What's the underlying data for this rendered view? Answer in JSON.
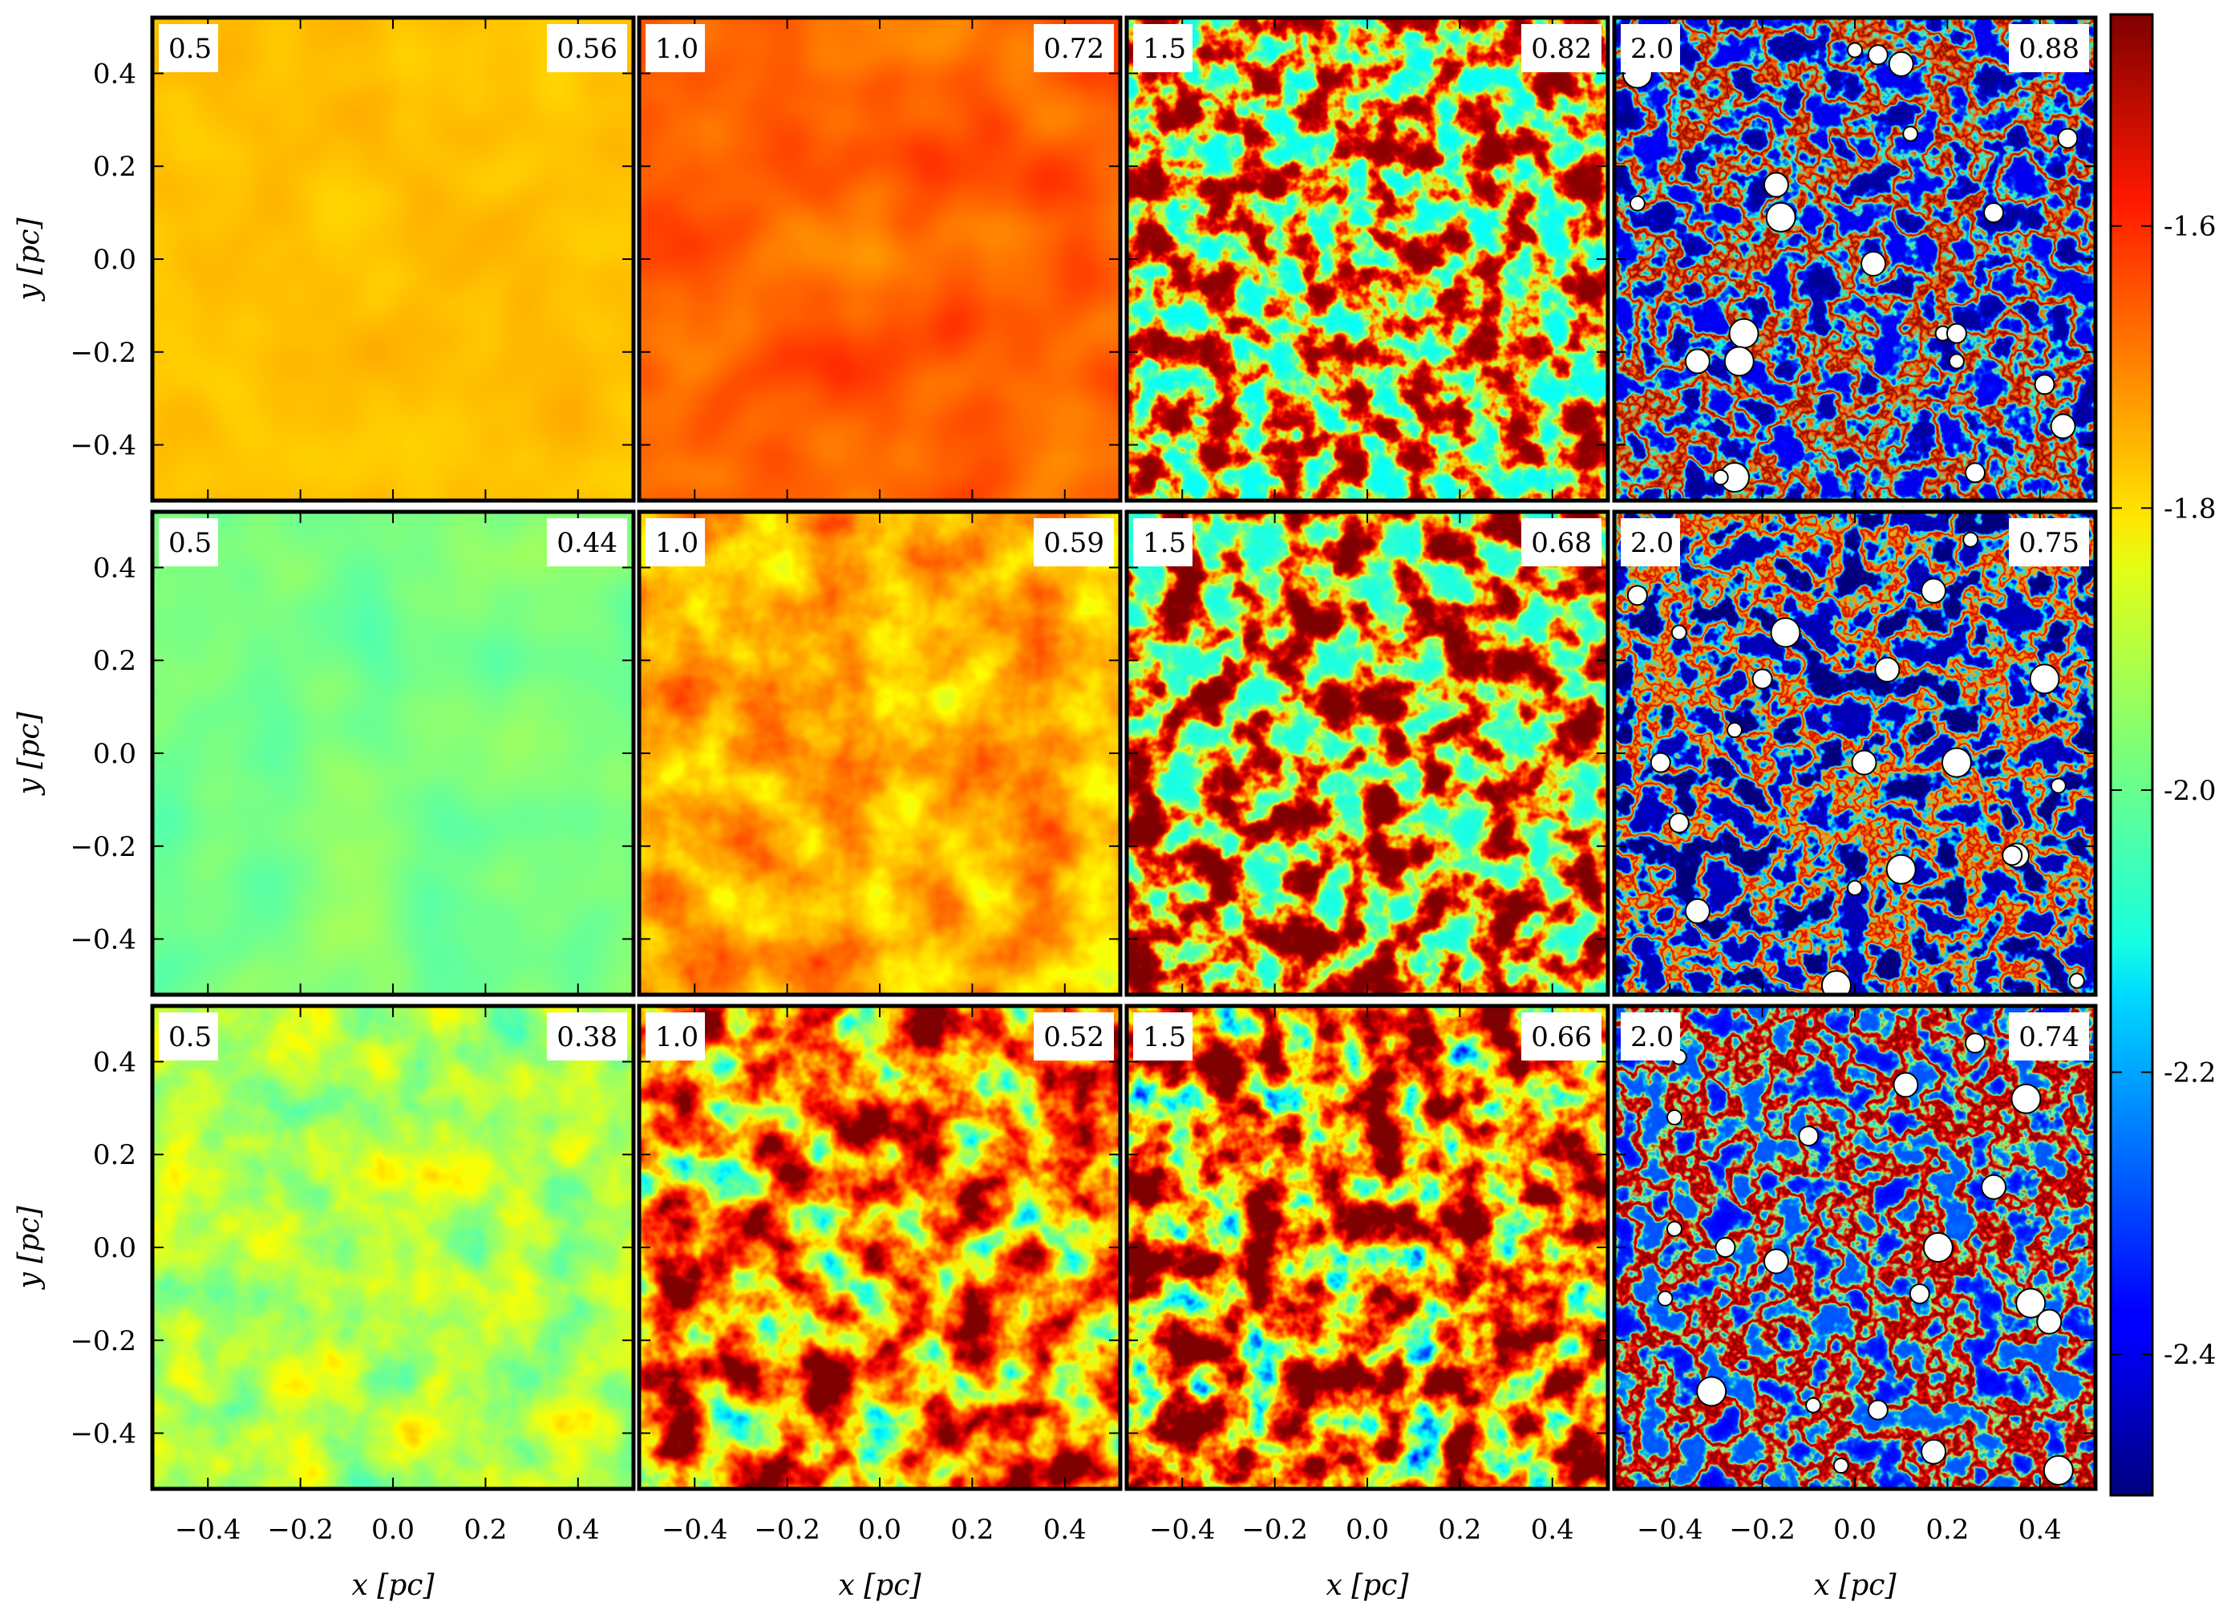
{
  "chart_data": {
    "type": "heatmap",
    "layout": {
      "rows": 3,
      "columns": 4
    },
    "xlabel": "x [pc]",
    "ylabel": "y [pc]",
    "xlim": [
      -0.52,
      0.52
    ],
    "ylim": [
      -0.52,
      0.52
    ],
    "xticks": [
      "−0.4",
      "−0.2",
      "0.0",
      "0.2",
      "0.4"
    ],
    "yticks": [
      "0.4",
      "0.2",
      "0.0",
      "−0.2",
      "−0.4"
    ],
    "xtick_values": [
      -0.4,
      -0.2,
      0.0,
      0.2,
      0.4
    ],
    "ytick_values": [
      0.4,
      0.2,
      0.0,
      -0.2,
      -0.4
    ],
    "colorbar": {
      "ticks": [
        "-1.6",
        "-1.8",
        "-2.0",
        "-2.2",
        "-2.4"
      ],
      "tick_values": [
        -1.6,
        -1.8,
        -2.0,
        -2.2,
        -2.4
      ],
      "range": [
        -2.5,
        -1.45
      ],
      "colormap": "jet"
    },
    "panels": [
      {
        "row": 0,
        "col": 0,
        "label": "0.5",
        "value": "0.56",
        "mean": -1.78,
        "spread": 0.01,
        "feature": 2,
        "structure": "uniform"
      },
      {
        "row": 0,
        "col": 1,
        "label": "1.0",
        "value": "0.72",
        "mean": -1.68,
        "spread": 0.02,
        "feature": 2,
        "structure": "uniform"
      },
      {
        "row": 0,
        "col": 2,
        "label": "1.5",
        "value": "0.82",
        "mean": -1.78,
        "spread": 0.1,
        "feature": 6,
        "structure": "cells"
      },
      {
        "row": 0,
        "col": 3,
        "label": "2.0",
        "value": "0.88",
        "mean": -2.28,
        "spread": 0.12,
        "feature": 6,
        "structure": "filaments"
      },
      {
        "row": 1,
        "col": 0,
        "label": "0.5",
        "value": "0.44",
        "mean": -1.98,
        "spread": 0.015,
        "feature": 2,
        "structure": "uniform"
      },
      {
        "row": 1,
        "col": 1,
        "label": "1.0",
        "value": "0.59",
        "mean": -1.76,
        "spread": 0.04,
        "feature": 3,
        "structure": "noise"
      },
      {
        "row": 1,
        "col": 2,
        "label": "1.5",
        "value": "0.68",
        "mean": -1.76,
        "spread": 0.1,
        "feature": 5,
        "structure": "cells"
      },
      {
        "row": 1,
        "col": 3,
        "label": "2.0",
        "value": "0.75",
        "mean": -2.34,
        "spread": 0.12,
        "feature": 6,
        "structure": "filaments"
      },
      {
        "row": 2,
        "col": 0,
        "label": "0.5",
        "value": "0.38",
        "mean": -1.92,
        "spread": 0.04,
        "feature": 3,
        "structure": "noise"
      },
      {
        "row": 2,
        "col": 1,
        "label": "1.0",
        "value": "0.52",
        "mean": -1.72,
        "spread": 0.16,
        "feature": 4,
        "structure": "noise"
      },
      {
        "row": 2,
        "col": 2,
        "label": "1.5",
        "value": "0.66",
        "mean": -1.7,
        "spread": 0.2,
        "feature": 5,
        "structure": "noise"
      },
      {
        "row": 2,
        "col": 3,
        "label": "2.0",
        "value": "0.74",
        "mean": -2.15,
        "spread": 0.14,
        "feature": 6,
        "structure": "filaments"
      }
    ],
    "sinks": [
      {
        "panel": 3,
        "points": [
          [
            0.0,
            0.45
          ],
          [
            0.05,
            0.44
          ],
          [
            0.1,
            0.42
          ],
          [
            -0.47,
            0.4
          ],
          [
            0.12,
            0.27
          ],
          [
            0.46,
            0.26
          ],
          [
            -0.17,
            0.16
          ],
          [
            -0.16,
            0.09
          ],
          [
            -0.47,
            0.12
          ],
          [
            0.3,
            0.1
          ],
          [
            0.04,
            -0.01
          ],
          [
            -0.24,
            -0.16
          ],
          [
            0.19,
            -0.16
          ],
          [
            0.22,
            -0.16
          ],
          [
            -0.34,
            -0.22
          ],
          [
            -0.25,
            -0.22
          ],
          [
            0.22,
            -0.22
          ],
          [
            0.41,
            -0.27
          ],
          [
            0.45,
            -0.36
          ],
          [
            -0.26,
            -0.47
          ],
          [
            -0.29,
            -0.47
          ],
          [
            0.26,
            -0.46
          ]
        ]
      },
      {
        "panel": 7,
        "points": [
          [
            0.25,
            0.46
          ],
          [
            -0.47,
            0.34
          ],
          [
            0.17,
            0.35
          ],
          [
            -0.15,
            0.26
          ],
          [
            -0.38,
            0.26
          ],
          [
            -0.2,
            0.16
          ],
          [
            0.07,
            0.18
          ],
          [
            0.41,
            0.16
          ],
          [
            -0.26,
            0.05
          ],
          [
            -0.42,
            -0.02
          ],
          [
            0.02,
            -0.02
          ],
          [
            0.22,
            -0.02
          ],
          [
            0.44,
            -0.07
          ],
          [
            -0.38,
            -0.15
          ],
          [
            0.35,
            -0.22
          ],
          [
            0.1,
            -0.25
          ],
          [
            0.0,
            -0.29
          ],
          [
            0.34,
            -0.22
          ],
          [
            -0.34,
            -0.34
          ],
          [
            -0.04,
            -0.5
          ],
          [
            0.48,
            -0.49
          ]
        ]
      },
      {
        "panel": 11,
        "points": [
          [
            -0.38,
            0.41
          ],
          [
            0.26,
            0.44
          ],
          [
            0.11,
            0.35
          ],
          [
            0.37,
            0.32
          ],
          [
            -0.39,
            0.28
          ],
          [
            -0.1,
            0.24
          ],
          [
            0.3,
            0.13
          ],
          [
            0.18,
            0.0
          ],
          [
            -0.39,
            0.04
          ],
          [
            -0.28,
            0.0
          ],
          [
            -0.17,
            -0.03
          ],
          [
            0.38,
            -0.12
          ],
          [
            -0.41,
            -0.11
          ],
          [
            0.14,
            -0.1
          ],
          [
            0.42,
            -0.16
          ],
          [
            -0.31,
            -0.31
          ],
          [
            -0.09,
            -0.34
          ],
          [
            0.05,
            -0.35
          ],
          [
            0.17,
            -0.44
          ],
          [
            0.44,
            -0.48
          ],
          [
            -0.03,
            -0.47
          ]
        ]
      }
    ]
  }
}
